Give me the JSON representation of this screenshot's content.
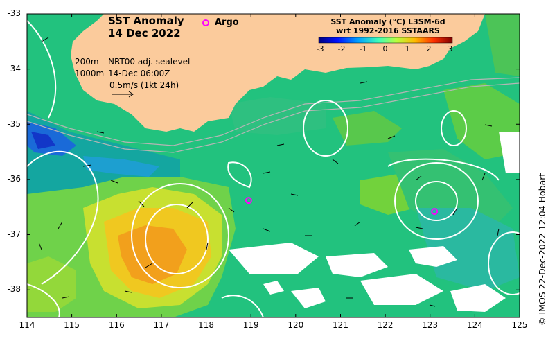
{
  "title": {
    "line1": "SST Anomaly",
    "line2": "14 Dec 2022"
  },
  "argo_label": "Argo",
  "legend": {
    "depths_line1": "200m",
    "depths_line2": "1000m",
    "source_line1": "NRT00 adj. sealevel",
    "source_line2": "14-Dec 06:00Z",
    "vector_scale": "0.5m/s (1kt 24h)"
  },
  "colorbar": {
    "title_line1": "SST Anomaly (°C) L3SM-6d",
    "title_line2": "wrt 1992-2016 SSTAARS",
    "ticks": [
      "-3",
      "-2",
      "-1",
      "0",
      "1",
      "2",
      "3"
    ],
    "colors": [
      "#00007f",
      "#0010ff",
      "#00a4ff",
      "#3fffb7",
      "#b7ff3f",
      "#ffb900",
      "#ff3000",
      "#7f0000"
    ]
  },
  "axes": {
    "x_ticks": [
      "114",
      "115",
      "116",
      "117",
      "118",
      "119",
      "120",
      "121",
      "122",
      "123",
      "124",
      "125"
    ],
    "y_ticks": [
      "-33",
      "-34",
      "-35",
      "-36",
      "-37",
      "-38"
    ],
    "lon_range": [
      114,
      125
    ],
    "lat_range": [
      -38.5,
      -33
    ]
  },
  "argo_floats": [
    {
      "lon": 118.95,
      "lat": -36.38
    },
    {
      "lon": 123.1,
      "lat": -36.58
    }
  ],
  "credit": "© IMOS 22-Dec-2022 12:04 Hobart",
  "colors": {
    "land": "#fbcb9c",
    "ocean": "#1fc08a",
    "argo": "#ff00ff",
    "contour": "#ffffff"
  }
}
